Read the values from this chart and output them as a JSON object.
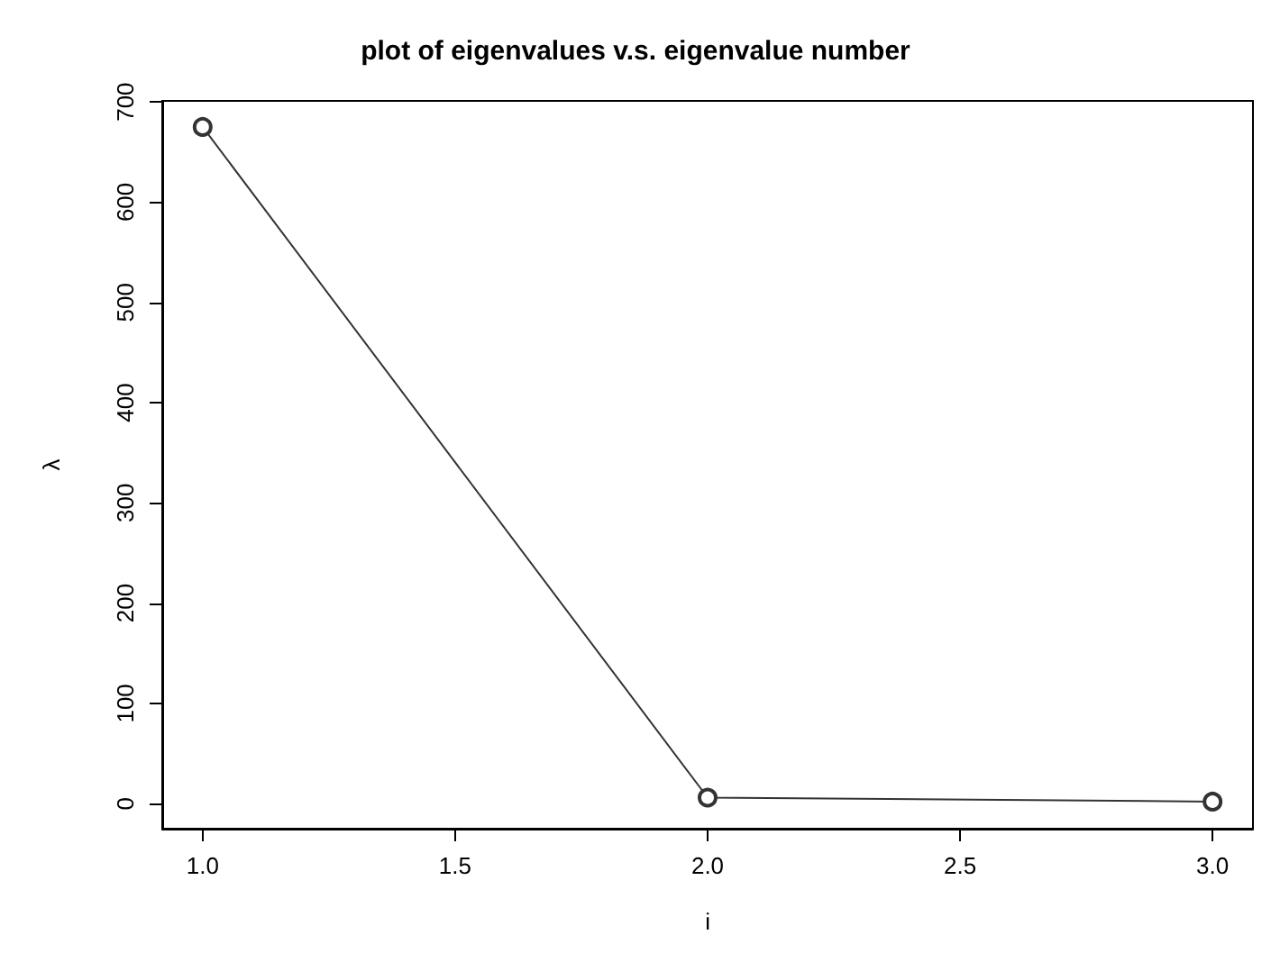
{
  "chart_data": {
    "type": "line",
    "title": "plot of eigenvalues v.s. eigenvalue number",
    "xlabel": "i",
    "ylabel": "λ",
    "x": [
      1,
      2,
      3
    ],
    "series": [
      {
        "color": "#333333",
        "values": [
          675,
          6,
          2
        ]
      }
    ],
    "xlim": [
      0.92,
      3.08
    ],
    "xticks": [
      {
        "value": 1,
        "label": "1.0"
      },
      {
        "value": 1.5,
        "label": "1.5"
      },
      {
        "value": 2,
        "label": "2.0"
      },
      {
        "value": 2.5,
        "label": "2.5"
      },
      {
        "value": 3,
        "label": "3.0"
      }
    ],
    "ylim": [
      -25,
      701
    ],
    "yticks": [
      0,
      100,
      200,
      300,
      400,
      500,
      600,
      700
    ],
    "grid": false,
    "marker": "circle",
    "line_style": "solid"
  }
}
